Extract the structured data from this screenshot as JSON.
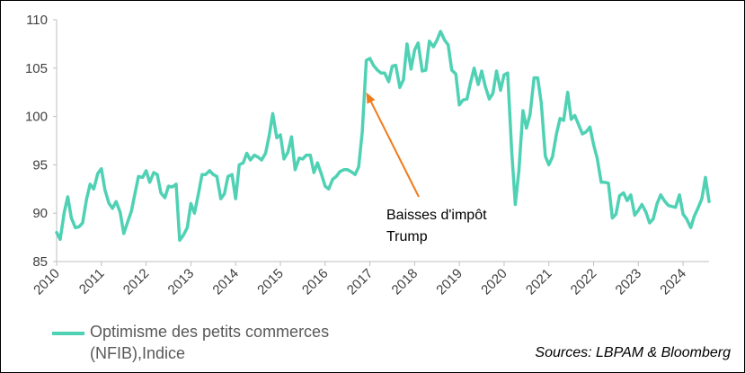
{
  "chart_data": {
    "type": "line",
    "ylim": [
      85,
      110
    ],
    "xlim": [
      2010,
      2024.58
    ],
    "y_ticks": [
      "85",
      "90",
      "95",
      "100",
      "105",
      "110"
    ],
    "x_ticks": [
      "2010",
      "2011",
      "2012",
      "2013",
      "2014",
      "2015",
      "2016",
      "2017",
      "2018",
      "2019",
      "2020",
      "2021",
      "2022",
      "2023",
      "2024"
    ],
    "grid": false,
    "legend_position": "bottom-left",
    "series": [
      {
        "name": "Optimisme des petits commerces (NFIB),Indice",
        "color": "#4fd1b4",
        "x": [
          2010.0,
          2010.08,
          2010.17,
          2010.25,
          2010.33,
          2010.42,
          2010.5,
          2010.58,
          2010.67,
          2010.75,
          2010.83,
          2010.92,
          2011.0,
          2011.08,
          2011.17,
          2011.25,
          2011.33,
          2011.42,
          2011.5,
          2011.58,
          2011.67,
          2011.75,
          2011.83,
          2011.92,
          2012.0,
          2012.08,
          2012.17,
          2012.25,
          2012.33,
          2012.42,
          2012.5,
          2012.58,
          2012.67,
          2012.75,
          2012.83,
          2012.92,
          2013.0,
          2013.08,
          2013.17,
          2013.25,
          2013.33,
          2013.42,
          2013.5,
          2013.58,
          2013.67,
          2013.75,
          2013.83,
          2013.92,
          2014.0,
          2014.08,
          2014.17,
          2014.25,
          2014.33,
          2014.42,
          2014.5,
          2014.58,
          2014.67,
          2014.75,
          2014.83,
          2014.92,
          2015.0,
          2015.08,
          2015.17,
          2015.25,
          2015.33,
          2015.42,
          2015.5,
          2015.58,
          2015.67,
          2015.75,
          2015.83,
          2015.92,
          2016.0,
          2016.08,
          2016.17,
          2016.25,
          2016.33,
          2016.42,
          2016.5,
          2016.58,
          2016.67,
          2016.75,
          2016.83,
          2016.92,
          2017.0,
          2017.08,
          2017.17,
          2017.25,
          2017.33,
          2017.42,
          2017.5,
          2017.58,
          2017.67,
          2017.75,
          2017.83,
          2017.92,
          2018.0,
          2018.08,
          2018.17,
          2018.25,
          2018.33,
          2018.42,
          2018.5,
          2018.58,
          2018.67,
          2018.75,
          2018.83,
          2018.92,
          2019.0,
          2019.08,
          2019.17,
          2019.25,
          2019.33,
          2019.42,
          2019.5,
          2019.58,
          2019.67,
          2019.75,
          2019.83,
          2019.92,
          2020.0,
          2020.08,
          2020.17,
          2020.25,
          2020.33,
          2020.42,
          2020.5,
          2020.58,
          2020.67,
          2020.75,
          2020.83,
          2020.92,
          2021.0,
          2021.08,
          2021.17,
          2021.25,
          2021.33,
          2021.42,
          2021.5,
          2021.58,
          2021.67,
          2021.75,
          2021.83,
          2021.92,
          2022.0,
          2022.08,
          2022.17,
          2022.25,
          2022.33,
          2022.42,
          2022.5,
          2022.58,
          2022.67,
          2022.75,
          2022.83,
          2022.92,
          2023.0,
          2023.08,
          2023.17,
          2023.25,
          2023.33,
          2023.42,
          2023.5,
          2023.58,
          2023.67,
          2023.75,
          2023.83,
          2023.92,
          2024.0,
          2024.08,
          2024.17,
          2024.25,
          2024.33,
          2024.42,
          2024.5,
          2024.58
        ],
        "y": [
          88.0,
          87.3,
          90.1,
          91.7,
          89.5,
          88.5,
          88.6,
          89.0,
          91.5,
          93.0,
          92.5,
          94.1,
          94.6,
          92.4,
          91.0,
          90.5,
          91.2,
          90.1,
          87.9,
          89.0,
          90.2,
          92.0,
          93.8,
          93.7,
          94.4,
          93.2,
          94.2,
          94.0,
          92.1,
          91.6,
          92.8,
          92.7,
          93.0,
          87.2,
          87.7,
          88.5,
          91.0,
          90.0,
          92.0,
          94.0,
          94.0,
          94.4,
          94.0,
          93.8,
          91.5,
          92.0,
          93.8,
          94.0,
          91.5,
          95.0,
          95.2,
          96.2,
          95.5,
          96.0,
          95.8,
          95.5,
          96.2,
          98.0,
          100.3,
          97.8,
          98.1,
          95.6,
          96.3,
          97.9,
          94.5,
          95.7,
          95.6,
          96.0,
          96.0,
          94.2,
          95.2,
          94.0,
          92.8,
          92.5,
          93.5,
          93.8,
          94.3,
          94.5,
          94.5,
          94.3,
          94.0,
          94.8,
          98.4,
          105.8,
          106.0,
          105.3,
          104.8,
          104.5,
          104.5,
          103.6,
          105.2,
          105.3,
          103.0,
          103.8,
          107.5,
          104.9,
          106.9,
          107.6,
          104.7,
          104.8,
          107.8,
          107.2,
          107.9,
          108.8,
          107.9,
          107.4,
          104.8,
          104.4,
          101.2,
          101.7,
          101.8,
          103.5,
          105.0,
          103.3,
          104.7,
          103.1,
          101.8,
          102.4,
          104.7,
          102.7,
          104.3,
          104.5,
          96.4,
          90.9,
          94.4,
          100.6,
          98.8,
          100.2,
          104.0,
          104.0,
          101.4,
          95.9,
          95.0,
          95.8,
          98.2,
          99.8,
          99.6,
          102.5,
          99.7,
          100.1,
          99.1,
          98.2,
          98.4,
          98.9,
          97.1,
          95.7,
          93.2,
          93.2,
          93.1,
          89.5,
          89.9,
          91.8,
          92.1,
          91.3,
          91.9,
          89.8,
          90.3,
          90.9,
          90.1,
          89.0,
          89.4,
          91.0,
          91.9,
          91.3,
          90.8,
          90.7,
          90.6,
          91.9,
          89.9,
          89.4,
          88.5,
          89.7,
          90.5,
          91.5,
          93.7,
          91.2
        ]
      }
    ],
    "annotation": {
      "text": "Baisses d'impôt Trump",
      "points_to_x": 2016.92,
      "points_to_y": 102.5,
      "arrow_color": "#f07b1a"
    }
  },
  "legend": {
    "label": "Optimisme des petits commerces (NFIB),Indice"
  },
  "source": "Sources: LBPAM & Bloomberg"
}
